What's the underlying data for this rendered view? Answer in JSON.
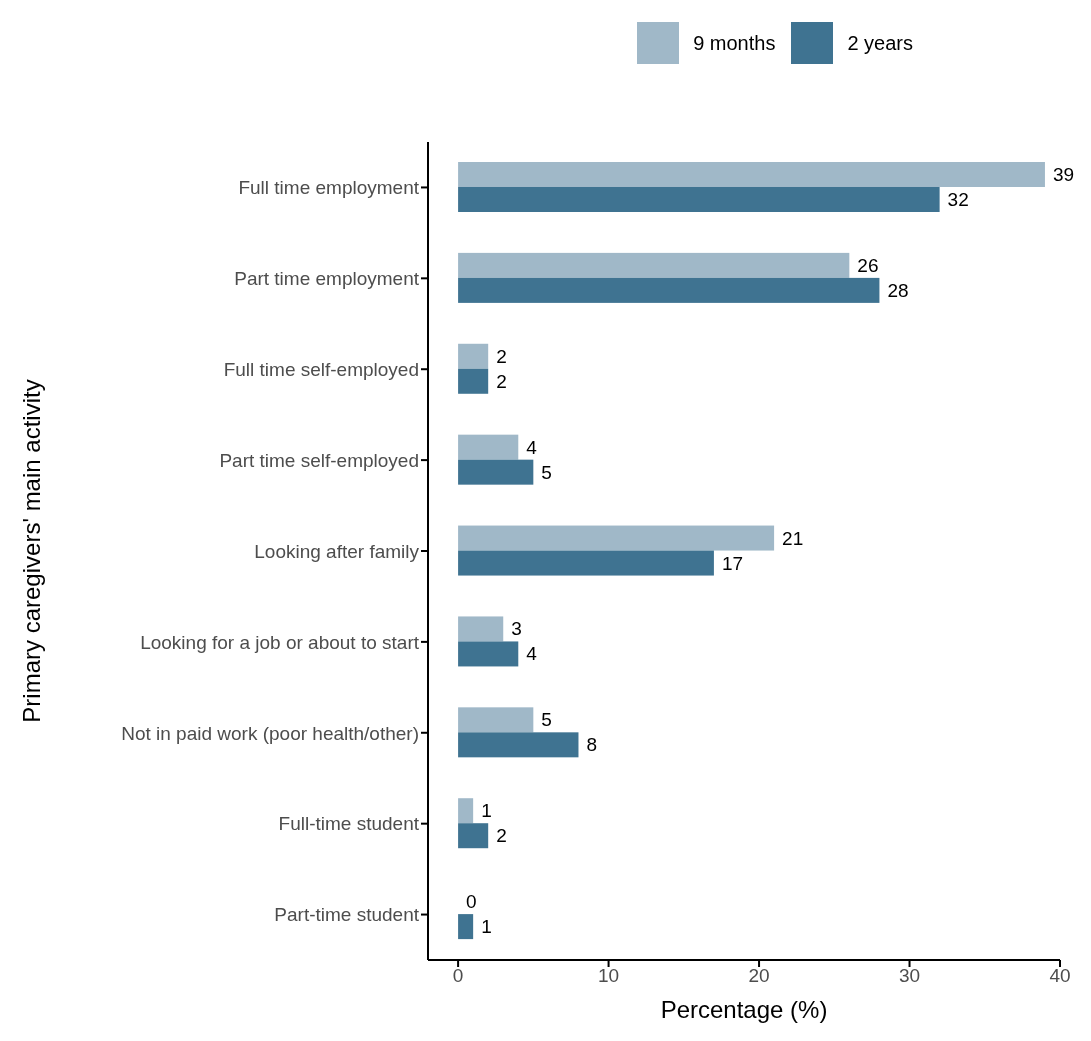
{
  "chart_data": {
    "type": "bar",
    "orientation": "horizontal",
    "ylabel": "Primary caregivers' main activity",
    "xlabel": "Percentage (%)",
    "categories": [
      "Full time employment",
      "Part time employment",
      "Full time self-employed",
      "Part time self-employed",
      "Looking after family",
      "Looking for a job or about to start",
      "Not in paid work (poor health/other)",
      "Full-time student",
      "Part-time student"
    ],
    "series": [
      {
        "name": "9 months",
        "color": "#a0b8c8",
        "values": [
          39,
          26,
          2,
          4,
          21,
          3,
          5,
          1,
          0
        ]
      },
      {
        "name": "2 years",
        "color": "#3f7391",
        "values": [
          32,
          28,
          2,
          5,
          17,
          4,
          8,
          2,
          1
        ]
      }
    ],
    "xlim": [
      -2,
      40
    ],
    "xticks": [
      0,
      10,
      20,
      30,
      40
    ],
    "data_labels": true,
    "grid": false,
    "legend": "top right"
  }
}
